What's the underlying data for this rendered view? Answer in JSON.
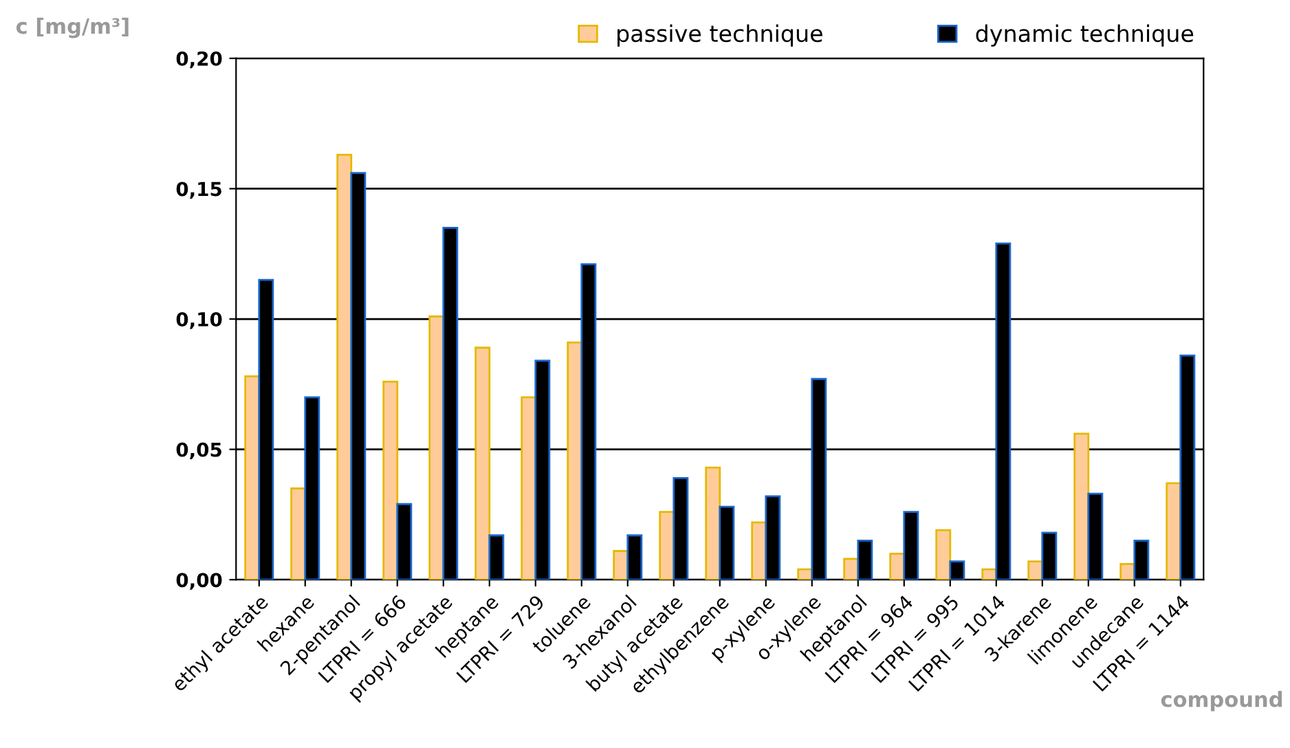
{
  "chart_data": {
    "type": "bar",
    "ylabel": "c [mg/m³]",
    "xlabel": "compound",
    "categories": [
      "ethyl acetate",
      "hexane",
      "2-pentanol",
      "LTPRI = 666",
      "propyl acetate",
      "heptane",
      "LTPRI = 729",
      "toluene",
      "3-hexanol",
      "butyl acetate",
      "ethylbenzene",
      "p-xylene",
      "o-xylene",
      "heptanol",
      "LTPRI = 964",
      "LTPRI = 995",
      "LTPRI = 1014",
      "3-karene",
      "limonene",
      "undecane",
      "LTPRI = 1144"
    ],
    "series": [
      {
        "name": "passive technique",
        "color": "#ffcc99",
        "values": [
          0.078,
          0.035,
          0.163,
          0.076,
          0.101,
          0.089,
          0.07,
          0.091,
          0.011,
          0.026,
          0.043,
          0.022,
          0.004,
          0.008,
          0.01,
          0.019,
          0.004,
          0.007,
          0.056,
          0.006,
          0.037
        ]
      },
      {
        "name": "dynamic technique",
        "color": "#000000",
        "values": [
          0.115,
          0.07,
          0.156,
          0.029,
          0.135,
          0.017,
          0.084,
          0.121,
          0.017,
          0.039,
          0.028,
          0.032,
          0.077,
          0.015,
          0.026,
          0.007,
          0.129,
          0.018,
          0.033,
          0.015,
          0.086
        ]
      }
    ],
    "ylim": [
      0,
      0.2
    ],
    "yticks": [
      {
        "value": 0,
        "label": "0,00"
      },
      {
        "value": 0.05,
        "label": "0,05"
      },
      {
        "value": 0.1,
        "label": "0,10"
      },
      {
        "value": 0.15,
        "label": "0,15"
      },
      {
        "value": 0.2,
        "label": "0,20"
      }
    ],
    "grid": "y",
    "legend": "top right"
  }
}
